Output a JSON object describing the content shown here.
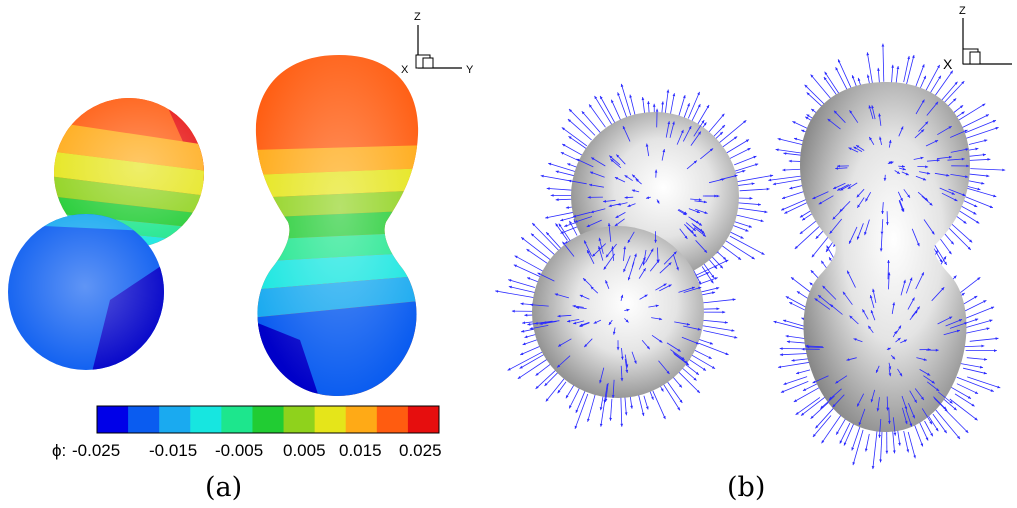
{
  "panels": [
    {
      "caption": "(a)",
      "colorbar": {
        "symbol": "ϕ:",
        "tick_labels": [
          "-0.025",
          "-0.015",
          "-0.005",
          "0.005",
          "0.015",
          "0.025"
        ],
        "colors": [
          "#0000e8",
          "#0a5cf0",
          "#1aaaf0",
          "#17e6e0",
          "#1de68d",
          "#21cc33",
          "#8fd21c",
          "#e5e51a",
          "#ffaa16",
          "#ff5c10",
          "#e60e0e"
        ]
      },
      "axes_triad": {
        "z": "Z",
        "x": "X",
        "y": "Y"
      }
    },
    {
      "caption": "(b)",
      "axes_triad": {
        "z": "Z",
        "x": "X"
      },
      "vector_color": "#2a2aff"
    }
  ]
}
